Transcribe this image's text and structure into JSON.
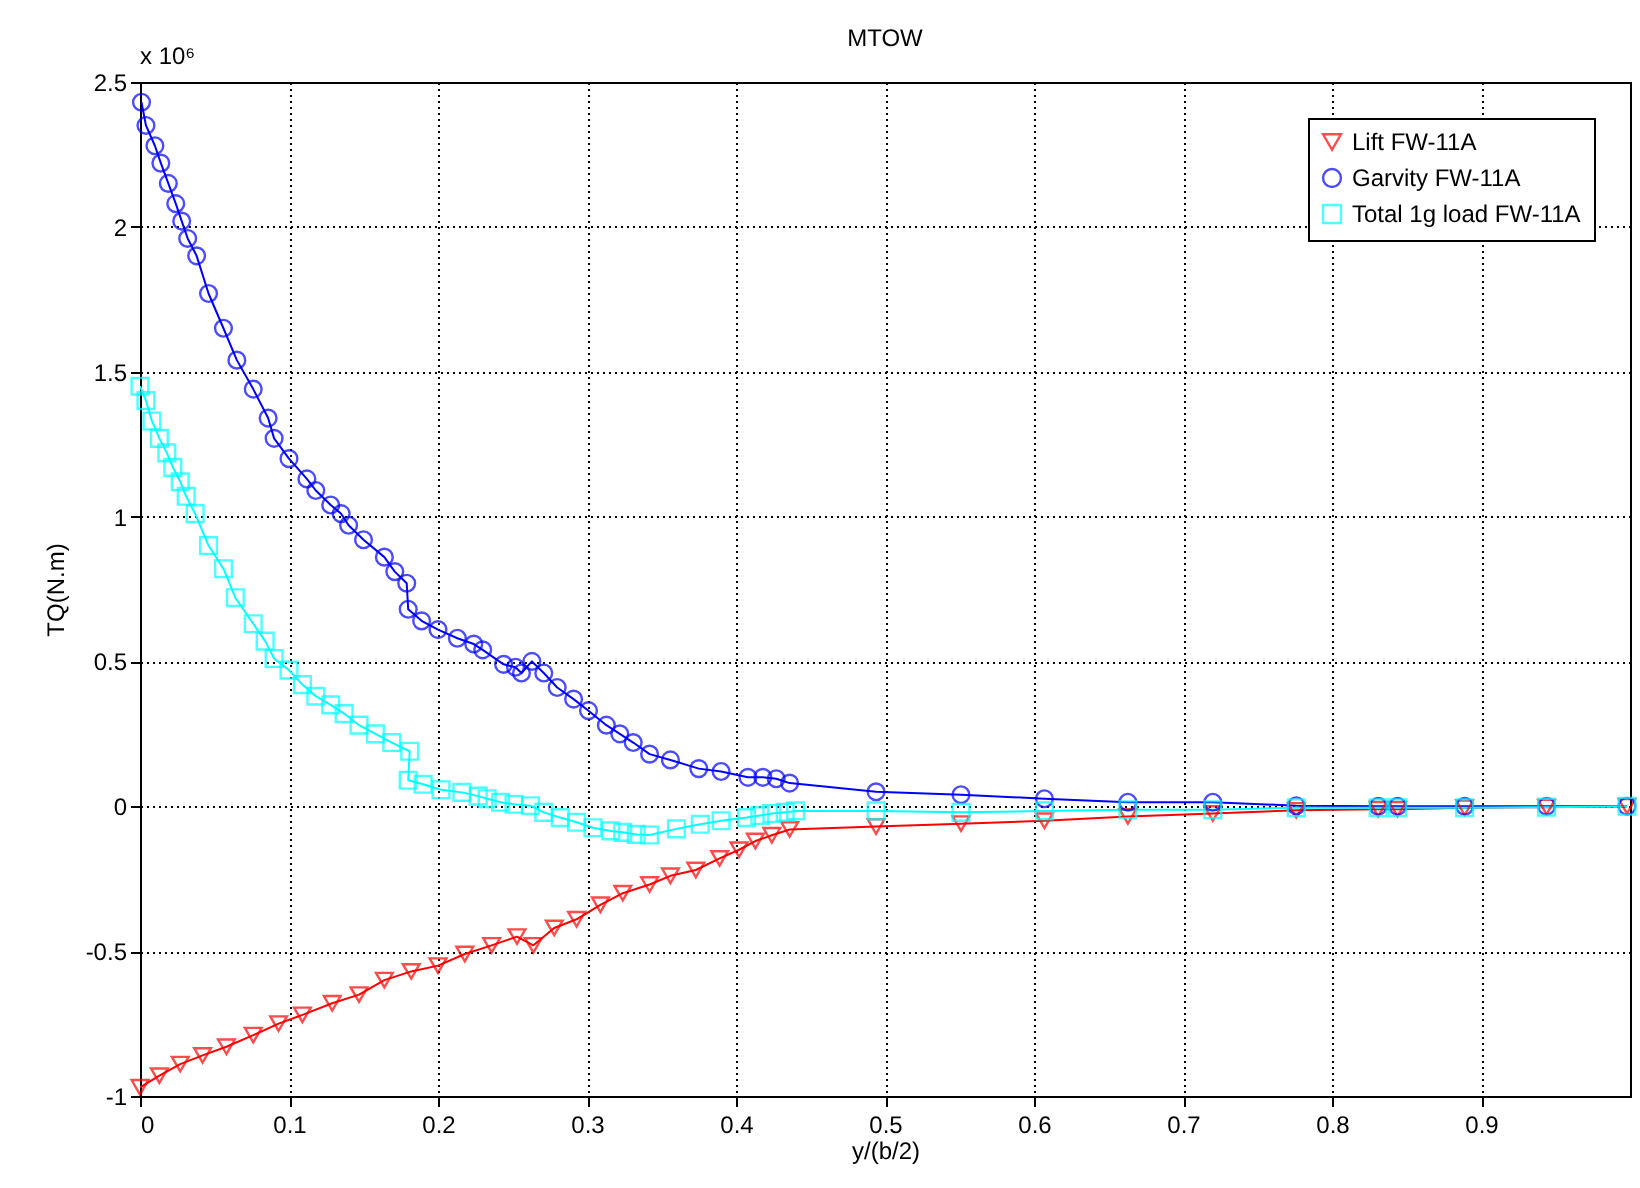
{
  "chart_data": {
    "type": "line",
    "title": "MTOW",
    "xlabel": "y/(b/2)",
    "ylabel": "TQ(N.m)",
    "annotations": [
      "x 10⁶"
    ],
    "xlim": [
      0,
      1
    ],
    "xticks": [
      0,
      0.1,
      0.2,
      0.3,
      0.4,
      0.5,
      0.6,
      0.7,
      0.8,
      0.9
    ],
    "ylim": [
      -1,
      2.5
    ],
    "yticks": [
      -1,
      -0.5,
      0,
      0.5,
      1,
      1.5,
      2,
      2.5
    ],
    "grid": true,
    "legend": "top right",
    "line_style": "solid",
    "series": [
      {
        "name": "Lift FW-11A",
        "color": "#ff0000",
        "marker": "triangle",
        "x": [
          0,
          0.013,
          0.027,
          0.042,
          0.058,
          0.076,
          0.093,
          0.109,
          0.129,
          0.147,
          0.164,
          0.182,
          0.2,
          0.218,
          0.236,
          0.253,
          0.264,
          0.278,
          0.293,
          0.309,
          0.324,
          0.342,
          0.356,
          0.373,
          0.389,
          0.402,
          0.413,
          0.424,
          0.436,
          0.494,
          0.551,
          0.607,
          0.663,
          0.72,
          0.776,
          0.831,
          0.844,
          0.889,
          0.944,
          0.998
        ],
        "values": [
          -0.97,
          -0.93,
          -0.89,
          -0.86,
          -0.83,
          -0.79,
          -0.75,
          -0.72,
          -0.68,
          -0.65,
          -0.6,
          -0.57,
          -0.55,
          -0.51,
          -0.48,
          -0.45,
          -0.48,
          -0.42,
          -0.39,
          -0.34,
          -0.3,
          -0.27,
          -0.24,
          -0.22,
          -0.18,
          -0.15,
          -0.12,
          -0.1,
          -0.08,
          -0.07,
          -0.06,
          -0.05,
          -0.035,
          -0.025,
          -0.014,
          -0.01,
          -0.01,
          -0.005,
          -0.003,
          0
        ]
      },
      {
        "name": "Garvity FW-11A",
        "color": "#0000ff",
        "marker": "circle",
        "x": [
          0.001,
          0.004,
          0.01,
          0.014,
          0.019,
          0.024,
          0.028,
          0.032,
          0.038,
          0.046,
          0.056,
          0.065,
          0.076,
          0.086,
          0.09,
          0.1,
          0.112,
          0.118,
          0.128,
          0.135,
          0.14,
          0.15,
          0.164,
          0.171,
          0.179,
          0.18,
          0.189,
          0.2,
          0.213,
          0.224,
          0.23,
          0.244,
          0.252,
          0.256,
          0.263,
          0.271,
          0.28,
          0.291,
          0.301,
          0.313,
          0.322,
          0.331,
          0.342,
          0.356,
          0.375,
          0.39,
          0.408,
          0.418,
          0.427,
          0.436,
          0.494,
          0.551,
          0.607,
          0.663,
          0.72,
          0.776,
          0.831,
          0.844,
          0.889,
          0.944,
          0.998
        ],
        "values": [
          2.43,
          2.35,
          2.28,
          2.22,
          2.15,
          2.08,
          2.02,
          1.96,
          1.9,
          1.77,
          1.65,
          1.54,
          1.44,
          1.34,
          1.27,
          1.2,
          1.13,
          1.09,
          1.04,
          1.01,
          0.97,
          0.92,
          0.86,
          0.81,
          0.77,
          0.68,
          0.64,
          0.61,
          0.58,
          0.56,
          0.54,
          0.49,
          0.48,
          0.46,
          0.5,
          0.46,
          0.41,
          0.37,
          0.33,
          0.28,
          0.25,
          0.22,
          0.18,
          0.16,
          0.13,
          0.12,
          0.1,
          0.1,
          0.095,
          0.08,
          0.05,
          0.04,
          0.026,
          0.014,
          0.014,
          0.002,
          0,
          0,
          0,
          0,
          0
        ]
      },
      {
        "name": "Total 1g load FW-11A",
        "color": "#00ffff",
        "marker": "square",
        "x": [
          0,
          0.004,
          0.008,
          0.013,
          0.018,
          0.022,
          0.027,
          0.031,
          0.037,
          0.046,
          0.056,
          0.064,
          0.076,
          0.084,
          0.09,
          0.1,
          0.109,
          0.118,
          0.128,
          0.137,
          0.147,
          0.158,
          0.169,
          0.181,
          0.18,
          0.19,
          0.202,
          0.216,
          0.227,
          0.233,
          0.242,
          0.251,
          0.262,
          0.271,
          0.282,
          0.293,
          0.304,
          0.316,
          0.324,
          0.333,
          0.342,
          0.36,
          0.376,
          0.39,
          0.407,
          0.416,
          0.424,
          0.433,
          0.44,
          0.494,
          0.551,
          0.607,
          0.663,
          0.72,
          0.776,
          0.831,
          0.844,
          0.889,
          0.944,
          0.998
        ],
        "values": [
          1.45,
          1.4,
          1.33,
          1.27,
          1.22,
          1.17,
          1.12,
          1.07,
          1.01,
          0.9,
          0.82,
          0.72,
          0.63,
          0.57,
          0.51,
          0.47,
          0.42,
          0.38,
          0.35,
          0.32,
          0.28,
          0.25,
          0.22,
          0.19,
          0.09,
          0.076,
          0.057,
          0.048,
          0.035,
          0.026,
          0.014,
          0.007,
          0.002,
          -0.021,
          -0.039,
          -0.055,
          -0.074,
          -0.085,
          -0.09,
          -0.097,
          -0.099,
          -0.078,
          -0.062,
          -0.05,
          -0.039,
          -0.032,
          -0.025,
          -0.021,
          -0.016,
          -0.016,
          -0.021,
          -0.016,
          -0.012,
          -0.012,
          -0.005,
          -0.005,
          -0.005,
          -0.005,
          -0.003,
          0
        ]
      }
    ]
  }
}
